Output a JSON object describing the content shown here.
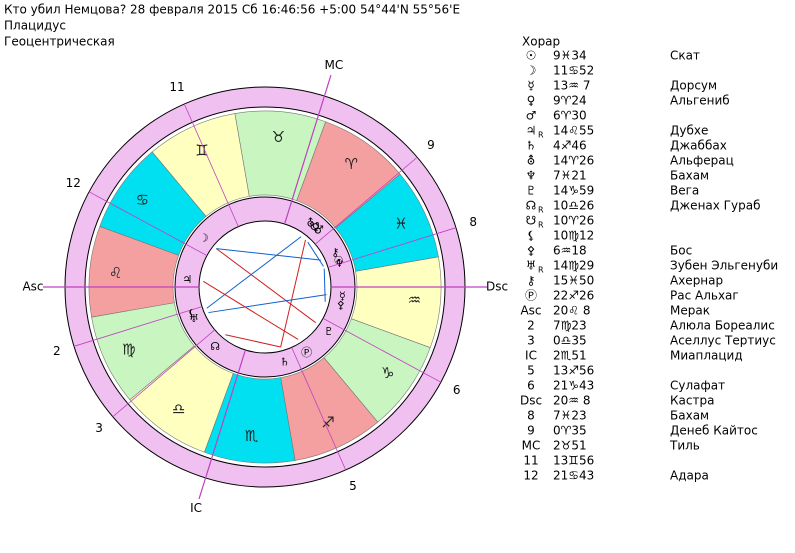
{
  "header": {
    "line1": "Кто убил Немцова?  28 февраля 2015  Сб  16:46:56 +5:00 54°44'N  55°56'E",
    "line2": "Плацидус",
    "line3": "Геоцентрическая"
  },
  "wheel": {
    "signs": [
      "♈",
      "♉",
      "♊",
      "♋",
      "♌",
      "♍",
      "♎",
      "♏",
      "♐",
      "♑",
      "♒",
      "♓"
    ],
    "sign_colors": [
      "#f4a0a0",
      "#c8f5c0",
      "#ffffc0",
      "#00e0f0"
    ]
  },
  "table": {
    "title": "Хорар",
    "rows": [
      {
        "symbol": "☉",
        "position": "9♓34",
        "star": "Скат"
      },
      {
        "symbol": "☽",
        "position": "11♋52"
      },
      {
        "symbol": "☿",
        "position": "13♒ 7",
        "star": "Дорсум"
      },
      {
        "symbol": "♀",
        "position": "9♈24",
        "star": "Альгениб"
      },
      {
        "symbol": "♂",
        "position": "6♈30"
      },
      {
        "symbol": "♃",
        "retro": "R",
        "position": "14♌55",
        "star": "Дубхе"
      },
      {
        "symbol": "♄",
        "position": "4♐46",
        "star": "Джаббах"
      },
      {
        "symbol": "⛢",
        "position": "14♈26",
        "star": "Альферац"
      },
      {
        "symbol": "♆",
        "position": "7♓21",
        "star": "Бахам"
      },
      {
        "symbol": "♇",
        "position": "14♑59",
        "star": "Вега"
      },
      {
        "symbol": "☊",
        "retro": "R",
        "position": "10♎26",
        "star": "Дженах Гураб"
      },
      {
        "symbol": "☋",
        "retro": "R",
        "position": "10♈26"
      },
      {
        "symbol": "⚸",
        "position": "10♍12"
      },
      {
        "symbol": "⚴",
        "position": "6♒18",
        "star": "Бос"
      },
      {
        "symbol": "♅",
        "retro": "R",
        "position": "14♍29",
        "star": "Зубен Эльгенуби"
      },
      {
        "symbol": "⚷",
        "position": "15♓50",
        "star": "Ахернар"
      },
      {
        "symbol": "Ⓟ",
        "position": "22♐26",
        "star": "Рас Альхаг"
      },
      {
        "symbol": "Asc",
        "position": "20♌ 8",
        "star": "Мерак"
      },
      {
        "symbol": "2",
        "position": "7♍23",
        "star": "Алюла Бореалис"
      },
      {
        "symbol": "3",
        "position": "0♎35",
        "star": "Аселлус Тертиус"
      },
      {
        "symbol": "IC",
        "position": "2♏51",
        "star": "Миаплацид"
      },
      {
        "symbol": "5",
        "position": "13♐56"
      },
      {
        "symbol": "6",
        "position": "21♑43",
        "star": "Сулафат"
      },
      {
        "symbol": "Dsc",
        "position": "20♒ 8",
        "star": "Кастра"
      },
      {
        "symbol": "8",
        "position": "7♓23",
        "star": "Бахам"
      },
      {
        "symbol": "9",
        "position": "0♈35",
        "star": "Денеб Кайтос"
      },
      {
        "symbol": "MC",
        "position": "2♉51",
        "star": "Тиль"
      },
      {
        "symbol": "11",
        "position": "13♊56"
      },
      {
        "symbol": "12",
        "position": "21♋43",
        "star": "Адара"
      }
    ]
  }
}
